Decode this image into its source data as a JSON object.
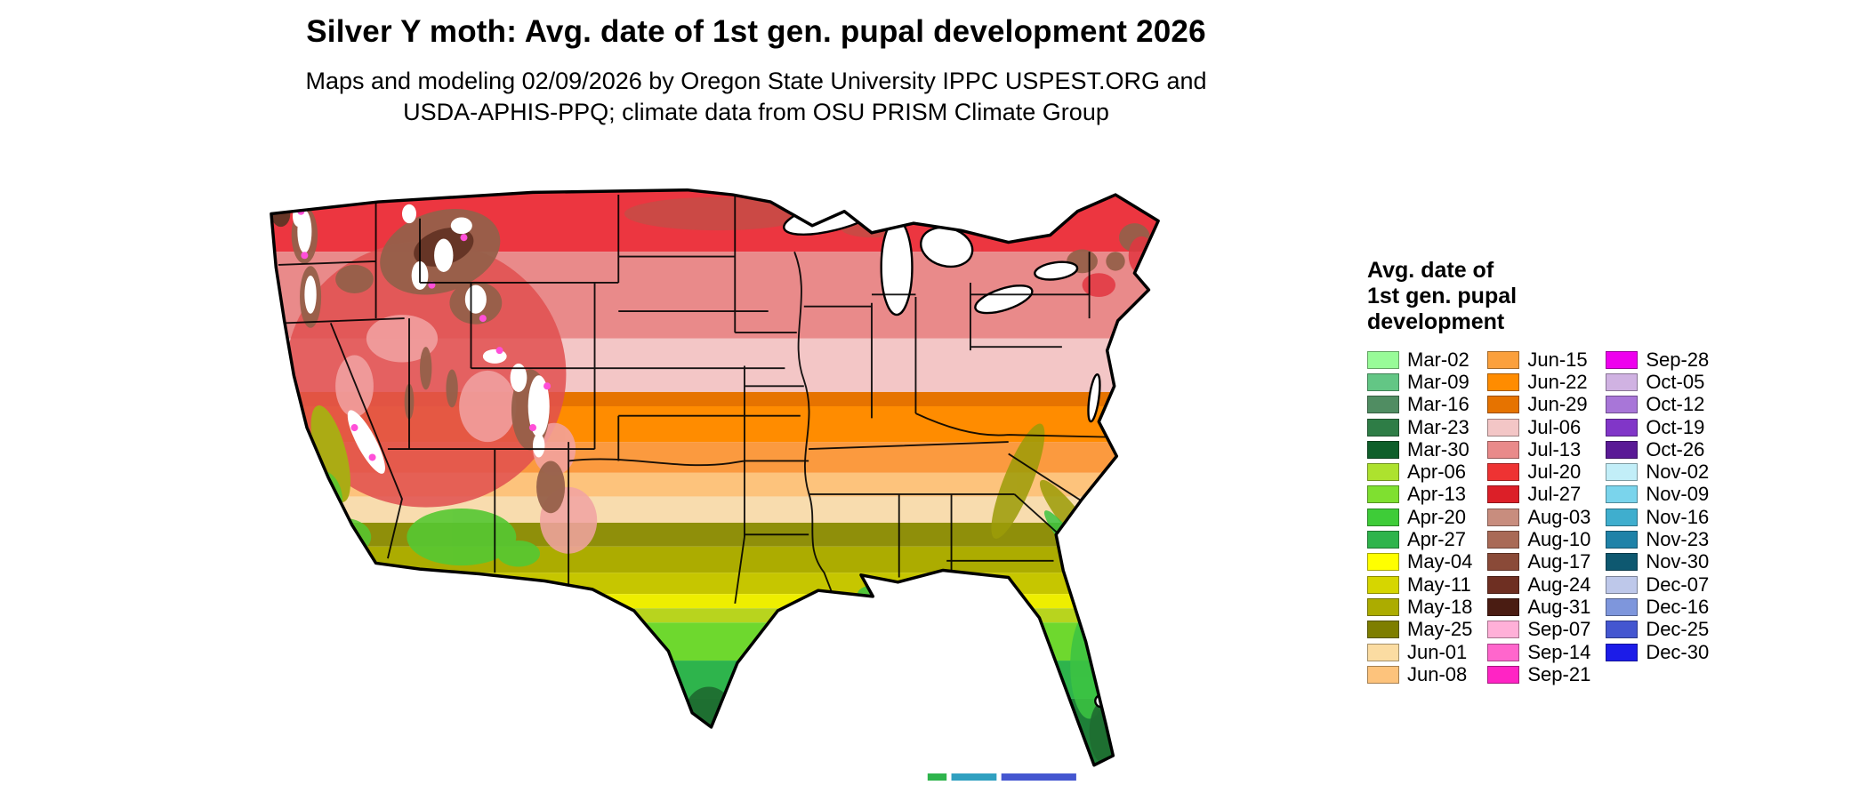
{
  "header": {
    "title": "Silver Y moth: Avg. date of 1st gen. pupal development 2026",
    "subtitle_lines": [
      "Maps and modeling 02/09/2026 by Oregon State University IPPC USPEST.ORG and",
      "USDA-APHIS-PPQ; climate data from OSU PRISM Climate Group"
    ]
  },
  "legend": {
    "title_lines": [
      "Avg. date of",
      "1st gen. pupal",
      "development"
    ],
    "columns": [
      {
        "entries": [
          {
            "label": "Mar-02",
            "color": "#98FB98"
          },
          {
            "label": "Mar-09",
            "color": "#63C685"
          },
          {
            "label": "Mar-16",
            "color": "#508D62"
          },
          {
            "label": "Mar-23",
            "color": "#2E7D46"
          },
          {
            "label": "Mar-30",
            "color": "#0E5F2A"
          },
          {
            "label": "Apr-06",
            "color": "#ADE22E"
          },
          {
            "label": "Apr-13",
            "color": "#7FE030"
          },
          {
            "label": "Apr-20",
            "color": "#3ECC38"
          },
          {
            "label": "Apr-27",
            "color": "#2EB44C"
          },
          {
            "label": "May-04",
            "color": "#FFFF00"
          },
          {
            "label": "May-11",
            "color": "#D6D600"
          },
          {
            "label": "May-18",
            "color": "#ACAC00"
          },
          {
            "label": "May-25",
            "color": "#7E7E00"
          },
          {
            "label": "Jun-01",
            "color": "#FBDCA2"
          },
          {
            "label": "Jun-08",
            "color": "#FDC37C"
          }
        ]
      },
      {
        "entries": [
          {
            "label": "Jun-15",
            "color": "#FBA03C"
          },
          {
            "label": "Jun-22",
            "color": "#FF8C00"
          },
          {
            "label": "Jun-29",
            "color": "#E67300"
          },
          {
            "label": "Jul-06",
            "color": "#F3C6C6"
          },
          {
            "label": "Jul-13",
            "color": "#E98A8A"
          },
          {
            "label": "Jul-20",
            "color": "#EE3333"
          },
          {
            "label": "Jul-27",
            "color": "#DC1F28"
          },
          {
            "label": "Aug-03",
            "color": "#C88D7E"
          },
          {
            "label": "Aug-10",
            "color": "#A96A56"
          },
          {
            "label": "Aug-17",
            "color": "#8A4A38"
          },
          {
            "label": "Aug-24",
            "color": "#6E2F22"
          },
          {
            "label": "Aug-31",
            "color": "#4A1C12"
          },
          {
            "label": "Sep-07",
            "color": "#FFB0D8"
          },
          {
            "label": "Sep-14",
            "color": "#FF66CC"
          },
          {
            "label": "Sep-21",
            "color": "#FF24C4"
          }
        ]
      },
      {
        "entries": [
          {
            "label": "Sep-28",
            "color": "#EE00EE"
          },
          {
            "label": "Oct-05",
            "color": "#D0B2E2"
          },
          {
            "label": "Oct-12",
            "color": "#A876D8"
          },
          {
            "label": "Oct-19",
            "color": "#8136C8"
          },
          {
            "label": "Oct-26",
            "color": "#5A1A96"
          },
          {
            "label": "Nov-02",
            "color": "#C2EEF8"
          },
          {
            "label": "Nov-09",
            "color": "#7AD4EC"
          },
          {
            "label": "Nov-16",
            "color": "#3FAECE"
          },
          {
            "label": "Nov-23",
            "color": "#1F82A8"
          },
          {
            "label": "Nov-30",
            "color": "#0E5870"
          },
          {
            "label": "Dec-07",
            "color": "#BEC8EA"
          },
          {
            "label": "Dec-16",
            "color": "#7E96DC"
          },
          {
            "label": "Dec-25",
            "color": "#4456D0"
          },
          {
            "label": "Dec-30",
            "color": "#1C1CE8"
          }
        ]
      }
    ]
  },
  "map": {
    "bands": [
      "#EC3640",
      "#E98A8A",
      "#F3C6C6",
      "#E67300",
      "#FF8C00",
      "#FB9A3F",
      "#FDC37C",
      "#F8DCAE",
      "#8F8F0A",
      "#ACAC00",
      "#C6C600",
      "#EEEE00",
      "#B8D41E",
      "#6ED82E",
      "#2EB44C",
      "#1E8038"
    ],
    "palette": {
      "snow": "#FFFFFF",
      "lake_fill": "#FFFFFF",
      "border": "#000000",
      "magenta": "#FF4FD8",
      "west_red": "#E14F4F",
      "pink_mottle": "#F2A3A3",
      "brown": "#96604A",
      "brown_dark": "#663526",
      "plains_brown": "#B05A48",
      "maine_red": "#E23540",
      "olive": "#9C9C08",
      "valley_olive": "#ABAB14",
      "green_bright": "#55C832",
      "green_mid": "#3CC442",
      "green_dark": "#1F6E30",
      "keys_green": "#2EB44C",
      "keys_teal": "#30A0C0",
      "keys_blue": "#4456D0"
    }
  }
}
